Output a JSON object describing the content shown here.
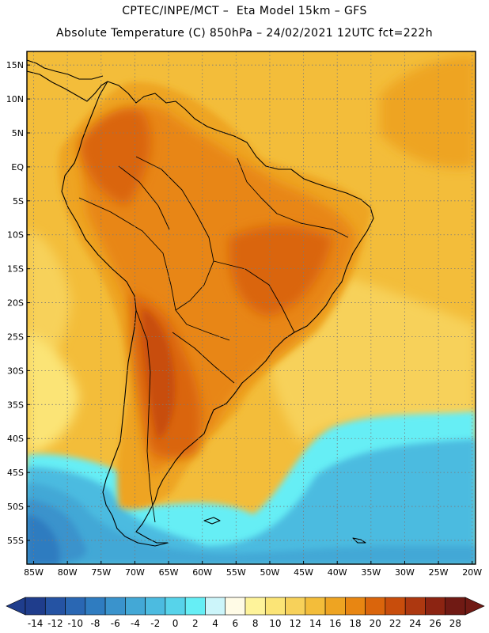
{
  "header": {
    "line1": "CPTEC/INPE/MCT –  Eta Model 15km – GFS",
    "line2": "Absolute Temperature (C) 850hPa – 24/02/2021 12UTC fct=222h"
  },
  "axes": {
    "lat_labels": [
      "15N",
      "10N",
      "5N",
      "EQ",
      "5S",
      "10S",
      "15S",
      "20S",
      "25S",
      "30S",
      "35S",
      "40S",
      "45S",
      "50S",
      "55S"
    ],
    "lat_values": [
      15,
      10,
      5,
      0,
      -5,
      -10,
      -15,
      -20,
      -25,
      -30,
      -35,
      -40,
      -45,
      -50,
      -55
    ],
    "lon_labels": [
      "85W",
      "80W",
      "75W",
      "70W",
      "65W",
      "60W",
      "55W",
      "50W",
      "45W",
      "40W",
      "35W",
      "30W",
      "25W",
      "20W"
    ],
    "lon_values": [
      -85,
      -80,
      -75,
      -70,
      -65,
      -60,
      -55,
      -50,
      -45,
      -40,
      -35,
      -30,
      -25,
      -20
    ],
    "lat_range": [
      -58.5,
      17
    ],
    "lon_range": [
      -86,
      -19.5
    ],
    "grid": "dotted"
  },
  "colorbar": {
    "labels": [
      "-14",
      "-12",
      "-10",
      "-8",
      "-6",
      "-4",
      "-2",
      "0",
      "2",
      "4",
      "6",
      "8",
      "10",
      "12",
      "14",
      "16",
      "18",
      "20",
      "22",
      "24",
      "26",
      "28"
    ],
    "colors": [
      "#1f3d8c",
      "#2553a3",
      "#2a67b3",
      "#2f7cc0",
      "#3a93cc",
      "#43a8d6",
      "#4cbbe0",
      "#57d3ea",
      "#66eef5",
      "#ccf5fa",
      "#fffbe6",
      "#fef39a",
      "#fbe476",
      "#f7d15a",
      "#f3bd3a",
      "#eea422",
      "#e88612",
      "#da650c",
      "#c84d0c",
      "#ad3810",
      "#8c2412",
      "#701a14"
    ]
  },
  "field_colors": {
    "land_cool": "#eea422",
    "land_warm": "#e88612",
    "land_hot": "#da650c",
    "land_hottest": "#c84d0c",
    "ocean_warm": "#f3bd3a",
    "ocean_mild": "#f7d15a",
    "ocean_cool": "#fbe476",
    "cold_1": "#66eef5",
    "cold_2": "#4cbbe0",
    "cold_3": "#43a8d6",
    "cold_4": "#3a93cc",
    "cold_5": "#2f7cc0"
  }
}
